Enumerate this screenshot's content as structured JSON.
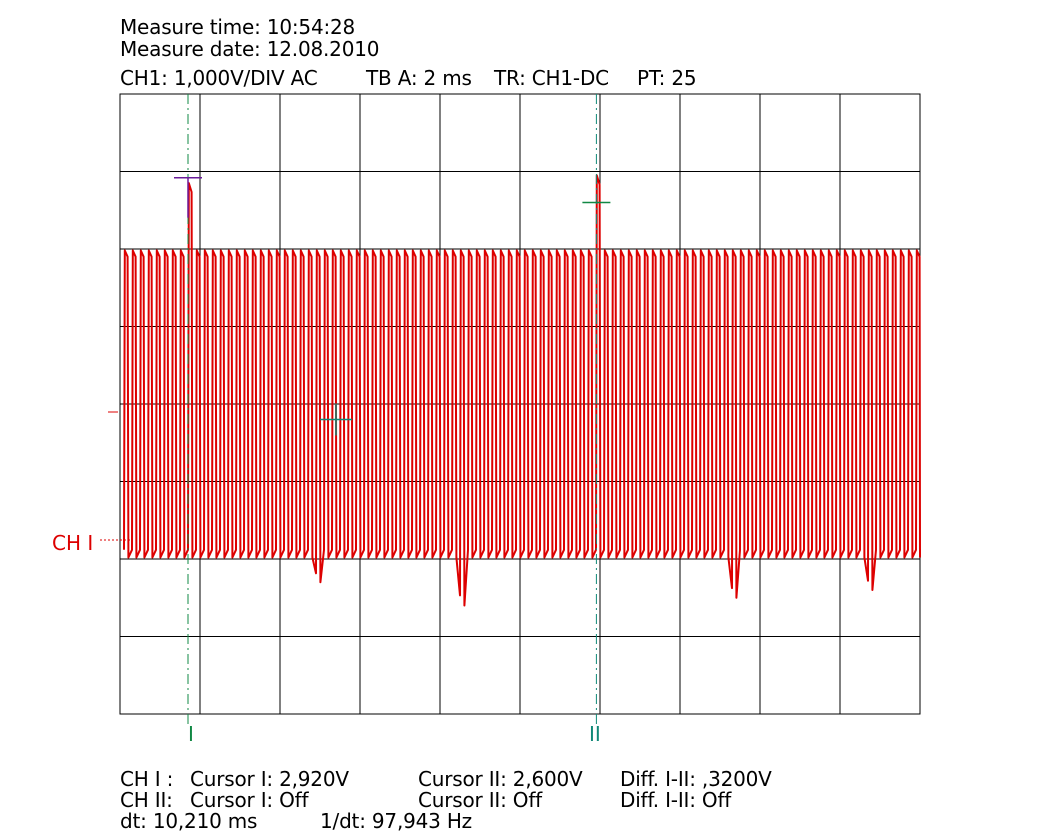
{
  "header": {
    "measure_time": "Measure time: 10:54:28",
    "measure_date": "Measure date: 12.08.2010",
    "ch1_setting": "CH1: 1,000V/DIV AC",
    "timebase": "TB A: 2 ms",
    "trigger": "TR: CH1-DC",
    "pt": "PT: 25"
  },
  "channel_label": "CH I",
  "cursor_labels": {
    "cursor1": "I",
    "cursor2": "II"
  },
  "footer": {
    "ch1_prefix": "CH I :",
    "ch1_cursor1": "Cursor I: 2,920V",
    "ch1_cursor2": "Cursor II: 2,600V",
    "ch1_diff": "Diff. I-II: ,3200V",
    "ch2_prefix": "CH II:",
    "ch2_cursor1": "Cursor I: Off",
    "ch2_cursor2": "Cursor II: Off",
    "ch2_diff": "Diff. I-II: Off",
    "dt": "dt: 10,210 ms",
    "inv_dt": "1/dt: 97,943 Hz"
  },
  "colors": {
    "trace": "#dd0000",
    "grid": "#000000",
    "cursor": "#118844",
    "cursor2": "#118877",
    "marker": "#6a1b9a"
  },
  "chart_data": {
    "type": "line",
    "title": "",
    "xlabel": "",
    "ylabel": "",
    "x_unit": "ms",
    "y_unit": "V",
    "x_divisions": 10,
    "y_divisions": 8,
    "x_per_div_ms": 2,
    "y_per_div_v": 1,
    "xlim": [
      0,
      20
    ],
    "ylim": [
      -4,
      4
    ],
    "grid": true,
    "waveform": {
      "description_free_samples_note": "",
      "frequency_hz": 5000,
      "x_start_ms": 0.1,
      "x_end_ms": 20,
      "high_v": 1.98,
      "low_v": -1.98,
      "spikes": [
        {
          "x_ms": 1.7,
          "y_v": 2.85
        },
        {
          "x_ms": 11.9,
          "y_v": 2.95
        },
        {
          "x_ms": 5.0,
          "y_v": -2.3
        },
        {
          "x_ms": 8.5,
          "y_v": -2.6
        },
        {
          "x_ms": 15.3,
          "y_v": -2.5
        },
        {
          "x_ms": 18.7,
          "y_v": -2.4
        }
      ]
    },
    "cursors": [
      {
        "name": "I",
        "x_ms": 1.7,
        "y_v": 2.92
      },
      {
        "name": "II",
        "x_ms": 11.91,
        "y_v": 2.6
      }
    ],
    "trigger_point": {
      "x_ms": 5.4,
      "y_v": -0.2
    }
  }
}
